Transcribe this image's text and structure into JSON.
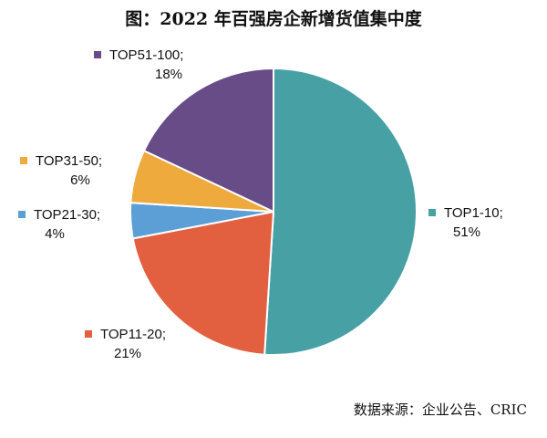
{
  "title": "图：2022 年百强房企新增货值集中度",
  "source": "数据来源：企业公告、CRIC",
  "chart_data": {
    "type": "pie",
    "slices": [
      {
        "label": "TOP1-10;",
        "pct_label": "51%",
        "value": 51,
        "color": "#46a0a4"
      },
      {
        "label": "TOP11-20;",
        "pct_label": "21%",
        "value": 21,
        "color": "#e2603f"
      },
      {
        "label": "TOP21-30;",
        "pct_label": "4%",
        "value": 4,
        "color": "#5b9fd6"
      },
      {
        "label": "TOP31-50;",
        "pct_label": "6%",
        "value": 6,
        "color": "#eeaa3c"
      },
      {
        "label": "TOP51-100;",
        "pct_label": "18%",
        "value": 18,
        "color": "#674c88"
      }
    ]
  }
}
